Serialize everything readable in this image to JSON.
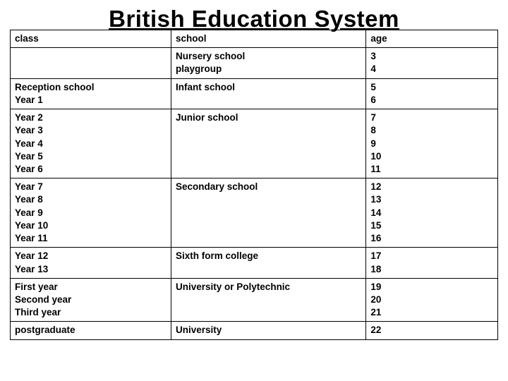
{
  "title": "British Education System",
  "headers": {
    "class": "class",
    "school": "school",
    "age": "age"
  },
  "rows": [
    {
      "class": "",
      "school": "Nursery school\nplaygroup",
      "age": "3\n4"
    },
    {
      "class": "Reception school\nYear 1",
      "school": "Infant school",
      "age": "5\n6"
    },
    {
      "class": "Year 2\nYear 3\nYear 4\nYear 5\nYear 6",
      "school": "Junior school",
      "age": "7\n8\n9\n10\n11"
    },
    {
      "class": "Year 7\nYear 8\nYear 9\nYear 10\nYear 11",
      "school": "Secondary school",
      "age": "12\n13\n14\n15\n16"
    },
    {
      "class": "Year 12\nYear 13",
      "school": "Sixth form college",
      "age": "17\n18"
    },
    {
      "class": "First year\nSecond year\nThird year",
      "school": "University or Polytechnic",
      "age": "19\n20\n21"
    },
    {
      "class": "postgraduate",
      "school": "University",
      "age": "22"
    }
  ],
  "style": {
    "background_color": "#ffffff",
    "text_color": "#000000",
    "border_color": "#000000",
    "title_fontsize": 33,
    "cell_fontsize": 13.5,
    "font_weight": "bold",
    "column_widths_pct": [
      33,
      40,
      27
    ]
  }
}
